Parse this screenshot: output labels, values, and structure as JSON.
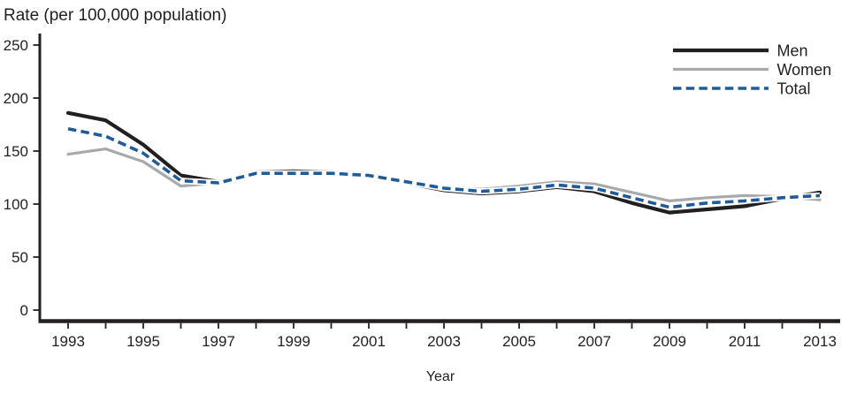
{
  "page": {
    "background": "#ffffff"
  },
  "chart_data": {
    "type": "line",
    "title": "Rate (per 100,000 population)",
    "xlabel": "Year",
    "ylabel": "Rate (per 100,000 population)",
    "x": [
      1993,
      1994,
      1995,
      1996,
      1997,
      1998,
      1999,
      2000,
      2001,
      2002,
      2003,
      2004,
      2005,
      2006,
      2007,
      2008,
      2009,
      2010,
      2011,
      2012,
      2013
    ],
    "x_tick_labels": [
      1993,
      1995,
      1997,
      1999,
      2001,
      2003,
      2005,
      2007,
      2009,
      2011,
      2013
    ],
    "yticks": [
      0,
      50,
      100,
      150,
      200,
      250
    ],
    "ylim": [
      0,
      250
    ],
    "grid": false,
    "legend_position": "top-right",
    "axis_color": "#231f20",
    "series": [
      {
        "name": "Men",
        "color": "#231f20",
        "style": "solid",
        "values": [
          186,
          179,
          156,
          127,
          121,
          130,
          131,
          130,
          128,
          120,
          113,
          110,
          112,
          116,
          112,
          101,
          92,
          95,
          98,
          105,
          111
        ]
      },
      {
        "name": "Women",
        "color": "#a7a9ac",
        "style": "solid",
        "values": [
          147,
          152,
          140,
          117,
          120,
          128,
          128,
          128,
          127,
          122,
          116,
          114,
          117,
          121,
          119,
          111,
          103,
          106,
          108,
          107,
          104
        ]
      },
      {
        "name": "Total",
        "color": "#1f5b99",
        "style": "dashed",
        "values": [
          171,
          164,
          148,
          122,
          120,
          129,
          129,
          129,
          127,
          121,
          115,
          112,
          114,
          118,
          115,
          106,
          97,
          101,
          103,
          106,
          108
        ]
      }
    ]
  }
}
